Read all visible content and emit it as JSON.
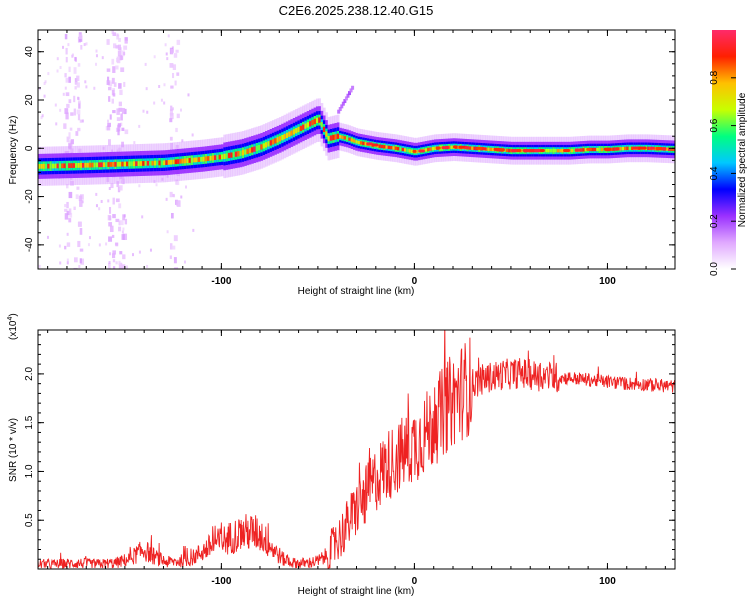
{
  "title": "C2E6.2025.238.12.40.G15",
  "chart_data": [
    {
      "type": "heatmap",
      "xlabel": "Height of straight line (km)",
      "ylabel": "Frequency (Hz)",
      "xlim": [
        -195,
        135
      ],
      "ylim": [
        -50,
        49
      ],
      "xticks": [
        -100,
        0,
        100
      ],
      "xtick_labels": [
        "-100",
        "0",
        "100"
      ],
      "yticks": [
        -40,
        -20,
        0,
        20,
        40
      ],
      "ytick_labels": [
        "-40",
        "-20",
        "0",
        "20",
        "40"
      ],
      "ridge": {
        "x": [
          -195,
          -170,
          -150,
          -130,
          -110,
          -100,
          -90,
          -80,
          -70,
          -60,
          -50,
          -45,
          -40,
          -35,
          -30,
          -20,
          -10,
          0,
          10,
          20,
          30,
          40,
          50,
          60,
          70,
          80,
          90,
          100,
          110,
          120,
          135
        ],
        "y": [
          -7.5,
          -7,
          -6.5,
          -6,
          -4.5,
          -3.5,
          -2,
          0.5,
          4,
          8,
          12,
          4,
          5,
          4,
          2.5,
          1,
          0,
          -1.5,
          0,
          0.5,
          0,
          -0.5,
          -1,
          -1,
          -1,
          -1,
          -0.5,
          -0.5,
          0,
          0,
          -0.5
        ]
      },
      "colorbar": {
        "label": "Normalized spectral amplitude",
        "range": [
          0,
          1
        ],
        "ticks": [
          0.0,
          0.2,
          0.4,
          0.6,
          0.8
        ],
        "tick_labels": [
          "0.0",
          "0.2",
          "0.4",
          "0.6",
          "0.8"
        ],
        "colors": [
          "#ffffff",
          "#e0a8ff",
          "#9a30ff",
          "#0000ff",
          "#00c8ff",
          "#00ff80",
          "#c8ff00",
          "#ffc000",
          "#ff2000",
          "#ff2a6a"
        ]
      }
    },
    {
      "type": "line",
      "xlabel": "Height of straight line (km)",
      "ylabel": "SNR (10 * v/v)",
      "y_multiplier": "(x10",
      "y_multiplier_exp": "4",
      "y_multiplier_close": ")",
      "xlim": [
        -195,
        135
      ],
      "ylim": [
        0,
        2.45
      ],
      "xticks": [
        -100,
        0,
        100
      ],
      "xtick_labels": [
        "-100",
        "0",
        "100"
      ],
      "yticks": [
        0.5,
        1.0,
        1.5,
        2.0
      ],
      "ytick_labels": [
        "0.5",
        "1.0",
        "1.5",
        "2.0"
      ],
      "series": [
        {
          "name": "SNR",
          "color": "#ee2222",
          "x": [
            -195,
            -185,
            -175,
            -165,
            -155,
            -148,
            -144,
            -140,
            -136,
            -132,
            -128,
            -122,
            -116,
            -110,
            -104,
            -98,
            -92,
            -86,
            -80,
            -74,
            -68,
            -62,
            -56,
            -50,
            -45,
            -40,
            -35,
            -30,
            -25,
            -20,
            -15,
            -10,
            -5,
            0,
            5,
            10,
            15,
            20,
            25,
            30,
            35,
            40,
            45,
            50,
            55,
            60,
            65,
            70,
            75,
            80,
            85,
            90,
            95,
            100,
            105,
            110,
            115,
            120,
            125,
            130,
            135
          ],
          "y": [
            0.05,
            0.05,
            0.06,
            0.05,
            0.06,
            0.1,
            0.15,
            0.2,
            0.14,
            0.1,
            0.07,
            0.08,
            0.1,
            0.18,
            0.25,
            0.3,
            0.35,
            0.38,
            0.36,
            0.22,
            0.1,
            0.06,
            0.06,
            0.08,
            0.14,
            0.28,
            0.45,
            0.62,
            0.75,
            0.92,
            1.05,
            1.12,
            1.2,
            1.28,
            1.38,
            1.48,
            1.62,
            1.74,
            1.83,
            1.9,
            1.94,
            1.97,
            1.99,
            2.0,
            2.01,
            1.99,
            1.98,
            1.97,
            1.96,
            1.96,
            1.95,
            1.94,
            1.93,
            1.92,
            1.91,
            1.9,
            1.9,
            1.89,
            1.88,
            1.88,
            1.87
          ]
        }
      ]
    }
  ]
}
